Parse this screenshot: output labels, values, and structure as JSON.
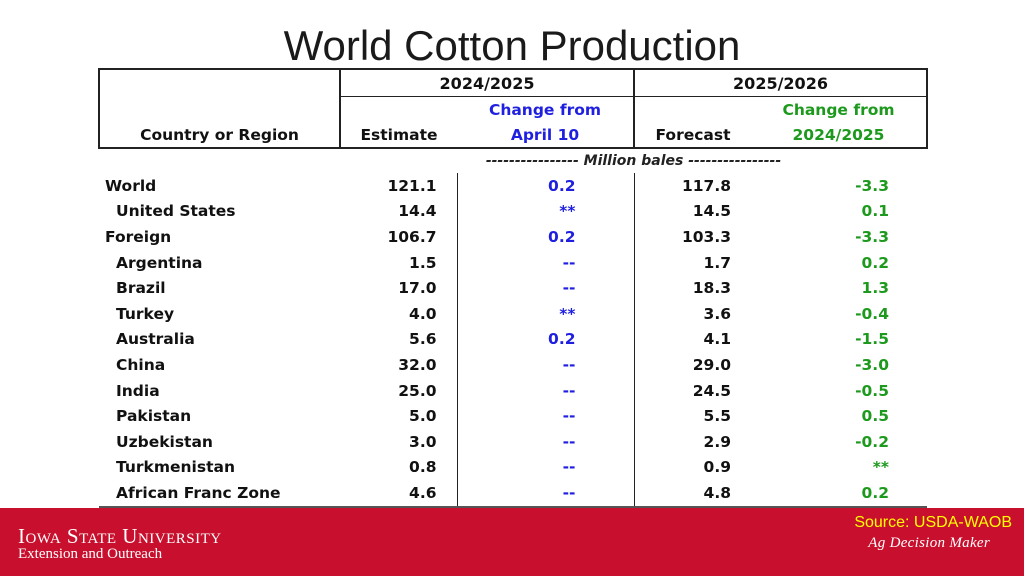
{
  "title": "World Cotton Production",
  "header": {
    "period1": "2024/2025",
    "period2": "2025/2026",
    "country_label": "Country or Region",
    "estimate_label": "Estimate",
    "change1_line1": "Change from",
    "change1_line2": "April 10",
    "forecast_label": "Forecast",
    "change2_line1": "Change from",
    "change2_line2": "2024/2025",
    "units": "---------------- Million bales ----------------"
  },
  "rows": [
    {
      "name": "World",
      "estimate": "121.1",
      "change_from_april": "0.2",
      "forecast": "117.8",
      "change_from_prior": "-3.3"
    },
    {
      "name": "United States",
      "estimate": "14.4",
      "change_from_april": "**",
      "forecast": "14.5",
      "change_from_prior": "0.1"
    },
    {
      "name": "Foreign",
      "estimate": "106.7",
      "change_from_april": "0.2",
      "forecast": "103.3",
      "change_from_prior": "-3.3"
    },
    {
      "name": "Argentina",
      "estimate": "1.5",
      "change_from_april": "--",
      "forecast": "1.7",
      "change_from_prior": "0.2"
    },
    {
      "name": "Brazil",
      "estimate": "17.0",
      "change_from_april": "--",
      "forecast": "18.3",
      "change_from_prior": "1.3"
    },
    {
      "name": "Turkey",
      "estimate": "4.0",
      "change_from_april": "**",
      "forecast": "3.6",
      "change_from_prior": "-0.4"
    },
    {
      "name": "Australia",
      "estimate": "5.6",
      "change_from_april": "0.2",
      "forecast": "4.1",
      "change_from_prior": "-1.5"
    },
    {
      "name": "China",
      "estimate": "32.0",
      "change_from_april": "--",
      "forecast": "29.0",
      "change_from_prior": "-3.0"
    },
    {
      "name": "India",
      "estimate": "25.0",
      "change_from_april": "--",
      "forecast": "24.5",
      "change_from_prior": "-0.5"
    },
    {
      "name": "Pakistan",
      "estimate": "5.0",
      "change_from_april": "--",
      "forecast": "5.5",
      "change_from_prior": "0.5"
    },
    {
      "name": "Uzbekistan",
      "estimate": "3.0",
      "change_from_april": "--",
      "forecast": "2.9",
      "change_from_prior": "-0.2"
    },
    {
      "name": "Turkmenistan",
      "estimate": "0.8",
      "change_from_april": "--",
      "forecast": "0.9",
      "change_from_prior": "**"
    },
    {
      "name": "African Franc Zone",
      "estimate": "4.6",
      "change_from_april": "--",
      "forecast": "4.8",
      "change_from_prior": "0.2"
    }
  ],
  "footer": {
    "university": "Iowa State University",
    "department": "Extension and Outreach",
    "source": "Source: USDA-WAOB",
    "brand": "Ag Decision Maker"
  },
  "colors": {
    "change_from_april": "#1f1fe0",
    "change_from_prior": "#1d9a1d",
    "footer_bar": "#c8102e",
    "source_text": "#ffff00"
  }
}
